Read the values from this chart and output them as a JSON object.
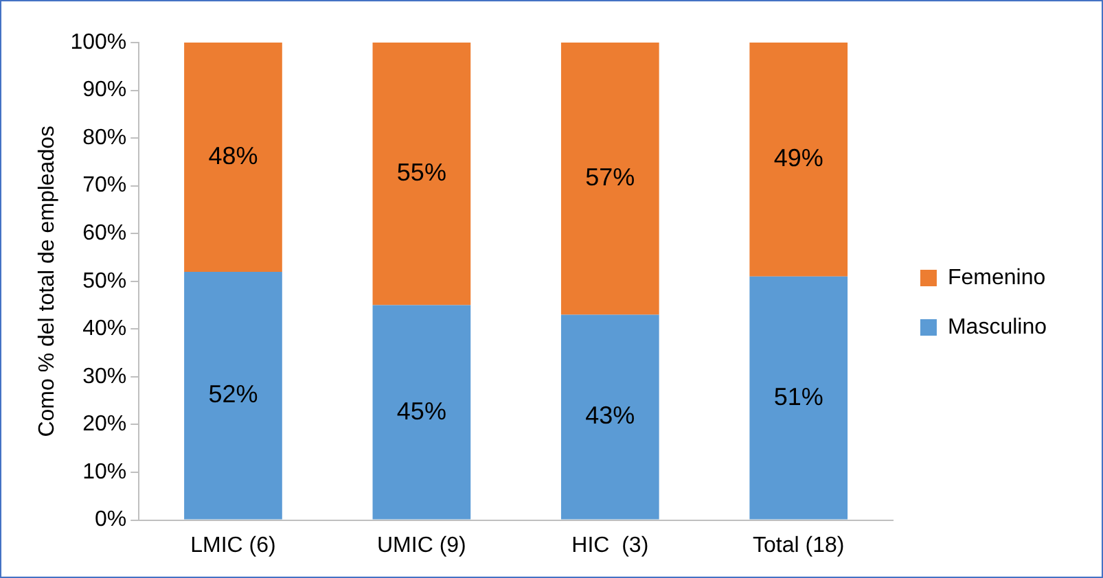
{
  "chart_data": {
    "type": "bar",
    "stacked": true,
    "ylabel": "Como % del total de empleados",
    "categories": [
      "LMIC (6)",
      "UMIC (9)",
      "HIC  (3)",
      "Total (18)"
    ],
    "series": [
      {
        "name": "Masculino",
        "color": "#5b9bd5",
        "values": [
          52,
          45,
          43,
          51
        ],
        "value_labels": [
          "52%",
          "45%",
          "43%",
          "51%"
        ]
      },
      {
        "name": "Femenino",
        "color": "#ed7d31",
        "values": [
          48,
          55,
          57,
          49
        ],
        "value_labels": [
          "48%",
          "55%",
          "57%",
          "49%"
        ]
      }
    ],
    "ylim": [
      0,
      100
    ],
    "yticks": [
      {
        "value": 0,
        "label": "0%"
      },
      {
        "value": 10,
        "label": "10%"
      },
      {
        "value": 20,
        "label": "20%"
      },
      {
        "value": 30,
        "label": "30%"
      },
      {
        "value": 40,
        "label": "40%"
      },
      {
        "value": 50,
        "label": "50%"
      },
      {
        "value": 60,
        "label": "60%"
      },
      {
        "value": 70,
        "label": "70%"
      },
      {
        "value": 80,
        "label": "80%"
      },
      {
        "value": 90,
        "label": "90%"
      },
      {
        "value": 100,
        "label": "100%"
      }
    ],
    "grid": false,
    "legend": "right"
  }
}
